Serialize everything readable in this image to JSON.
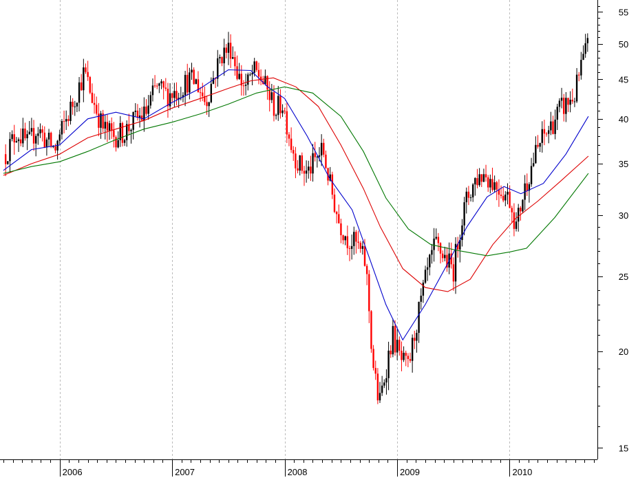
{
  "chart_data": {
    "type": "candlestick",
    "scale": "log",
    "ylim": [
      14.5,
      57
    ],
    "yticks": [
      15,
      20,
      25,
      30,
      35,
      40,
      45,
      50,
      55
    ],
    "ytick_labels": [
      "15",
      "20",
      "25",
      "30",
      "35",
      "40",
      "45",
      "50",
      "55"
    ],
    "xrange": [
      "2005-06",
      "2010-10"
    ],
    "xticks": [
      {
        "x": 2006.0,
        "label": "2006"
      },
      {
        "x": 2007.0,
        "label": "2007"
      },
      {
        "x": 2008.0,
        "label": "2008"
      },
      {
        "x": 2009.0,
        "label": "2009"
      },
      {
        "x": 2010.0,
        "label": "2010"
      }
    ],
    "grid": "vertical dashed at year boundaries",
    "colors": {
      "up": "#000000",
      "down": "#ff0000",
      "ma_short": "#0000cc",
      "ma_mid": "#dd0000",
      "ma_long": "#007700",
      "grid": "#bbbbbb"
    },
    "price_path": [
      [
        2005.52,
        36.0
      ],
      [
        2005.62,
        38.5
      ],
      [
        2005.72,
        37.0
      ],
      [
        2005.8,
        39.0
      ],
      [
        2005.88,
        37.5
      ],
      [
        2005.96,
        36.5
      ],
      [
        2006.03,
        39.0
      ],
      [
        2006.12,
        42.0
      ],
      [
        2006.22,
        46.0
      ],
      [
        2006.28,
        43.0
      ],
      [
        2006.38,
        39.0
      ],
      [
        2006.48,
        38.0
      ],
      [
        2006.58,
        38.5
      ],
      [
        2006.68,
        40.0
      ],
      [
        2006.76,
        40.5
      ],
      [
        2006.86,
        44.0
      ],
      [
        2006.95,
        43.0
      ],
      [
        2007.05,
        43.5
      ],
      [
        2007.15,
        45.0
      ],
      [
        2007.22,
        44.5
      ],
      [
        2007.3,
        42.0
      ],
      [
        2007.36,
        45.0
      ],
      [
        2007.44,
        48.5
      ],
      [
        2007.52,
        49.5
      ],
      [
        2007.6,
        45.0
      ],
      [
        2007.66,
        44.0
      ],
      [
        2007.72,
        46.0
      ],
      [
        2007.78,
        45.5
      ],
      [
        2007.86,
        43.0
      ],
      [
        2007.92,
        41.0
      ],
      [
        2007.98,
        42.0
      ],
      [
        2008.06,
        37.0
      ],
      [
        2008.12,
        35.0
      ],
      [
        2008.2,
        34.0
      ],
      [
        2008.28,
        35.5
      ],
      [
        2008.34,
        36.5
      ],
      [
        2008.4,
        33.0
      ],
      [
        2008.48,
        29.5
      ],
      [
        2008.56,
        28.0
      ],
      [
        2008.64,
        27.5
      ],
      [
        2008.72,
        26.0
      ],
      [
        2008.78,
        19.5
      ],
      [
        2008.84,
        17.0
      ],
      [
        2008.9,
        19.0
      ],
      [
        2008.96,
        21.0
      ],
      [
        2009.03,
        19.5
      ],
      [
        2009.1,
        19.0
      ],
      [
        2009.18,
        22.0
      ],
      [
        2009.26,
        25.0
      ],
      [
        2009.34,
        27.5
      ],
      [
        2009.42,
        26.5
      ],
      [
        2009.5,
        25.5
      ],
      [
        2009.56,
        29.0
      ],
      [
        2009.62,
        31.5
      ],
      [
        2009.7,
        33.5
      ],
      [
        2009.78,
        34.0
      ],
      [
        2009.86,
        33.0
      ],
      [
        2009.92,
        32.5
      ],
      [
        2010.0,
        31.5
      ],
      [
        2010.06,
        29.0
      ],
      [
        2010.12,
        32.0
      ],
      [
        2010.2,
        35.0
      ],
      [
        2010.28,
        37.5
      ],
      [
        2010.36,
        39.0
      ],
      [
        2010.44,
        41.0
      ],
      [
        2010.52,
        42.0
      ],
      [
        2010.58,
        43.0
      ],
      [
        2010.64,
        47.0
      ],
      [
        2010.7,
        50.0
      ]
    ],
    "series": [
      {
        "color": "#0000cc",
        "points": [
          [
            2005.5,
            34.3
          ],
          [
            2005.75,
            36.5
          ],
          [
            2006.0,
            37.0
          ],
          [
            2006.25,
            40.0
          ],
          [
            2006.5,
            40.8
          ],
          [
            2006.75,
            40.0
          ],
          [
            2007.0,
            42.0
          ],
          [
            2007.25,
            43.8
          ],
          [
            2007.5,
            46.3
          ],
          [
            2007.7,
            46.2
          ],
          [
            2007.85,
            44.0
          ],
          [
            2008.0,
            42.5
          ],
          [
            2008.2,
            38.0
          ],
          [
            2008.4,
            33.5
          ],
          [
            2008.6,
            30.5
          ],
          [
            2008.75,
            26.5
          ],
          [
            2008.9,
            23.0
          ],
          [
            2009.05,
            20.7
          ],
          [
            2009.25,
            23.0
          ],
          [
            2009.45,
            26.0
          ],
          [
            2009.62,
            29.0
          ],
          [
            2009.8,
            31.7
          ],
          [
            2009.95,
            32.7
          ],
          [
            2010.1,
            32.0
          ],
          [
            2010.3,
            33.0
          ],
          [
            2010.5,
            36.0
          ],
          [
            2010.7,
            40.3
          ]
        ]
      },
      {
        "color": "#dd0000",
        "points": [
          [
            2005.5,
            33.8
          ],
          [
            2005.75,
            35.0
          ],
          [
            2006.0,
            36.0
          ],
          [
            2006.25,
            37.8
          ],
          [
            2006.5,
            38.8
          ],
          [
            2006.75,
            39.8
          ],
          [
            2007.0,
            41.3
          ],
          [
            2007.25,
            42.5
          ],
          [
            2007.5,
            43.8
          ],
          [
            2007.7,
            44.8
          ],
          [
            2007.9,
            45.2
          ],
          [
            2008.1,
            44.0
          ],
          [
            2008.3,
            41.5
          ],
          [
            2008.5,
            37.0
          ],
          [
            2008.7,
            32.5
          ],
          [
            2008.85,
            29.0
          ],
          [
            2009.05,
            25.6
          ],
          [
            2009.25,
            24.2
          ],
          [
            2009.45,
            23.9
          ],
          [
            2009.65,
            24.8
          ],
          [
            2009.85,
            27.5
          ],
          [
            2010.05,
            29.7
          ],
          [
            2010.25,
            31.3
          ],
          [
            2010.45,
            33.2
          ],
          [
            2010.7,
            35.8
          ]
        ]
      },
      {
        "color": "#007700",
        "points": [
          [
            2005.5,
            34.0
          ],
          [
            2005.75,
            34.7
          ],
          [
            2006.0,
            35.2
          ],
          [
            2006.25,
            36.3
          ],
          [
            2006.5,
            37.6
          ],
          [
            2006.75,
            38.8
          ],
          [
            2007.0,
            39.6
          ],
          [
            2007.25,
            40.6
          ],
          [
            2007.5,
            41.8
          ],
          [
            2007.75,
            43.2
          ],
          [
            2008.0,
            44.0
          ],
          [
            2008.25,
            43.2
          ],
          [
            2008.5,
            40.3
          ],
          [
            2008.7,
            36.3
          ],
          [
            2008.9,
            31.6
          ],
          [
            2009.1,
            28.8
          ],
          [
            2009.3,
            27.5
          ],
          [
            2009.55,
            27.0
          ],
          [
            2009.8,
            26.6
          ],
          [
            2010.0,
            26.9
          ],
          [
            2010.15,
            27.2
          ],
          [
            2010.4,
            29.8
          ],
          [
            2010.7,
            34.0
          ]
        ]
      }
    ]
  }
}
